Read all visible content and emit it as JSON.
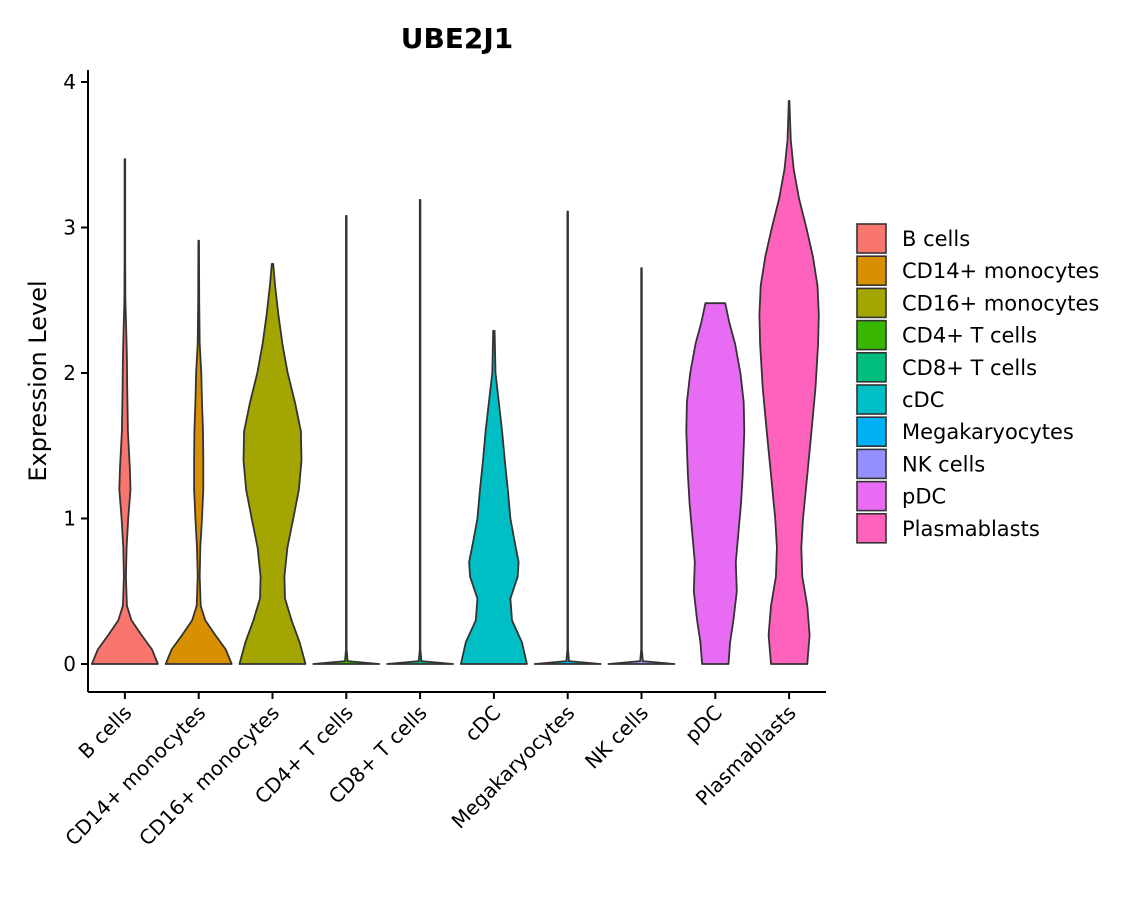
{
  "chart_data": {
    "type": "violin",
    "title": "UBE2J1",
    "xlabel": "",
    "ylabel": "Expression Level",
    "ylim": [
      0,
      4
    ],
    "yticks": [
      0,
      1,
      2,
      3,
      4
    ],
    "categories": [
      "B cells",
      "CD14+ monocytes",
      "CD16+ monocytes",
      "CD4+ T cells",
      "CD8+ T cells",
      "cDC",
      "Megakaryocytes",
      "NK cells",
      "pDC",
      "Plasmablasts"
    ],
    "colors": [
      "#F8766D",
      "#D89000",
      "#A3A500",
      "#39B600",
      "#00BF7D",
      "#00BFC4",
      "#00B0F6",
      "#9590FF",
      "#E76BF3",
      "#FF62BC"
    ],
    "legend": [
      "B cells",
      "CD14+ monocytes",
      "CD16+ monocytes",
      "CD4+ T cells",
      "CD8+ T cells",
      "cDC",
      "Megakaryocytes",
      "NK cells",
      "pDC",
      "Plasmablasts"
    ],
    "legend_position": "right",
    "violins": [
      {
        "name": "B cells",
        "max": 3.47,
        "profile": [
          [
            0,
            1.0
          ],
          [
            0.1,
            0.82
          ],
          [
            0.2,
            0.5
          ],
          [
            0.3,
            0.2
          ],
          [
            0.4,
            0.06
          ],
          [
            0.6,
            0.03
          ],
          [
            0.8,
            0.05
          ],
          [
            1.0,
            0.1
          ],
          [
            1.2,
            0.17
          ],
          [
            1.35,
            0.15
          ],
          [
            1.6,
            0.09
          ],
          [
            1.9,
            0.07
          ],
          [
            2.1,
            0.06
          ],
          [
            2.3,
            0.04
          ],
          [
            2.5,
            0.015
          ],
          [
            2.8,
            0.01
          ],
          [
            3.47,
            0.01
          ]
        ]
      },
      {
        "name": "CD14+ monocytes",
        "max": 2.91,
        "profile": [
          [
            0,
            1.0
          ],
          [
            0.1,
            0.82
          ],
          [
            0.2,
            0.5
          ],
          [
            0.3,
            0.2
          ],
          [
            0.4,
            0.06
          ],
          [
            0.6,
            0.03
          ],
          [
            0.8,
            0.05
          ],
          [
            1.0,
            0.1
          ],
          [
            1.2,
            0.14
          ],
          [
            1.4,
            0.14
          ],
          [
            1.6,
            0.13
          ],
          [
            1.8,
            0.1
          ],
          [
            2.0,
            0.08
          ],
          [
            2.2,
            0.03
          ],
          [
            2.5,
            0.015
          ],
          [
            2.91,
            0.01
          ]
        ]
      },
      {
        "name": "CD16+ monocytes",
        "max": 2.75,
        "profile": [
          [
            0,
            1.0
          ],
          [
            0.15,
            0.82
          ],
          [
            0.3,
            0.58
          ],
          [
            0.45,
            0.38
          ],
          [
            0.6,
            0.36
          ],
          [
            0.8,
            0.45
          ],
          [
            1.0,
            0.63
          ],
          [
            1.2,
            0.8
          ],
          [
            1.4,
            0.88
          ],
          [
            1.6,
            0.86
          ],
          [
            1.8,
            0.68
          ],
          [
            2.0,
            0.46
          ],
          [
            2.2,
            0.3
          ],
          [
            2.4,
            0.18
          ],
          [
            2.6,
            0.08
          ],
          [
            2.75,
            0.02
          ]
        ]
      },
      {
        "name": "CD4+ T cells",
        "max": 3.08,
        "profile": [
          [
            0,
            1.0
          ],
          [
            0.02,
            0.04
          ],
          [
            0.1,
            0.01
          ],
          [
            3.08,
            0.01
          ]
        ]
      },
      {
        "name": "CD8+ T cells",
        "max": 3.19,
        "profile": [
          [
            0,
            1.0
          ],
          [
            0.02,
            0.04
          ],
          [
            0.1,
            0.01
          ],
          [
            3.19,
            0.01
          ]
        ]
      },
      {
        "name": "cDC",
        "max": 2.29,
        "profile": [
          [
            0,
            1.0
          ],
          [
            0.15,
            0.85
          ],
          [
            0.3,
            0.55
          ],
          [
            0.45,
            0.5
          ],
          [
            0.6,
            0.72
          ],
          [
            0.7,
            0.75
          ],
          [
            0.85,
            0.62
          ],
          [
            1.0,
            0.5
          ],
          [
            1.2,
            0.42
          ],
          [
            1.4,
            0.33
          ],
          [
            1.6,
            0.25
          ],
          [
            1.8,
            0.15
          ],
          [
            2.0,
            0.05
          ],
          [
            2.29,
            0.02
          ]
        ]
      },
      {
        "name": "Megakaryocytes",
        "max": 3.11,
        "profile": [
          [
            0,
            1.0
          ],
          [
            0.02,
            0.04
          ],
          [
            0.1,
            0.01
          ],
          [
            3.11,
            0.01
          ]
        ]
      },
      {
        "name": "NK cells",
        "max": 2.72,
        "profile": [
          [
            0,
            1.0
          ],
          [
            0.02,
            0.04
          ],
          [
            0.1,
            0.01
          ],
          [
            2.72,
            0.01
          ]
        ]
      },
      {
        "name": "pDC",
        "max": 2.48,
        "profile": [
          [
            0,
            0.4
          ],
          [
            0.15,
            0.45
          ],
          [
            0.3,
            0.55
          ],
          [
            0.5,
            0.65
          ],
          [
            0.7,
            0.62
          ],
          [
            0.9,
            0.7
          ],
          [
            1.1,
            0.78
          ],
          [
            1.3,
            0.83
          ],
          [
            1.6,
            0.88
          ],
          [
            1.8,
            0.86
          ],
          [
            2.0,
            0.76
          ],
          [
            2.2,
            0.6
          ],
          [
            2.35,
            0.42
          ],
          [
            2.48,
            0.3
          ]
        ]
      },
      {
        "name": "Plasmablasts",
        "max": 3.87,
        "profile": [
          [
            0,
            0.55
          ],
          [
            0.2,
            0.62
          ],
          [
            0.4,
            0.55
          ],
          [
            0.6,
            0.4
          ],
          [
            0.8,
            0.37
          ],
          [
            1.0,
            0.42
          ],
          [
            1.3,
            0.55
          ],
          [
            1.6,
            0.68
          ],
          [
            1.9,
            0.8
          ],
          [
            2.2,
            0.88
          ],
          [
            2.4,
            0.9
          ],
          [
            2.6,
            0.86
          ],
          [
            2.8,
            0.72
          ],
          [
            3.0,
            0.52
          ],
          [
            3.2,
            0.3
          ],
          [
            3.4,
            0.14
          ],
          [
            3.6,
            0.05
          ],
          [
            3.87,
            0.01
          ]
        ]
      }
    ]
  }
}
